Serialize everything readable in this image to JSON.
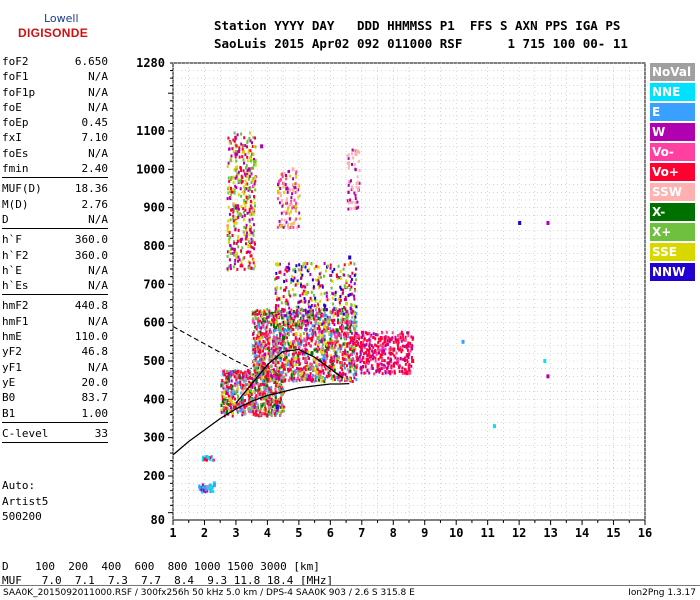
{
  "logo": {
    "line1": "Lowell",
    "line2": "DIGISONDE"
  },
  "header": {
    "line1": "Station YYYY DAY   DDD HHMMSS P1  FFS S AXN PPS IGA PS",
    "line2": "SaoLuis 2015 Apr02 092 011000 RSF      1 715 100 00- 11"
  },
  "params": [
    {
      "group": [
        {
          "label": "foF2",
          "value": "6.650"
        },
        {
          "label": "foF1",
          "value": "N/A"
        },
        {
          "label": "foF1p",
          "value": "N/A"
        },
        {
          "label": "foE",
          "value": "N/A"
        },
        {
          "label": "foEp",
          "value": "0.45"
        },
        {
          "label": "fxI",
          "value": "7.10"
        },
        {
          "label": "foEs",
          "value": "N/A"
        },
        {
          "label": "fmin",
          "value": "2.40"
        }
      ]
    },
    {
      "group": [
        {
          "label": "MUF(D)",
          "value": "18.36"
        },
        {
          "label": "M(D)",
          "value": "2.76"
        },
        {
          "label": "D",
          "value": "N/A"
        }
      ]
    },
    {
      "group": [
        {
          "label": "h`F",
          "value": "360.0"
        },
        {
          "label": "h`F2",
          "value": "360.0"
        },
        {
          "label": "h`E",
          "value": "N/A"
        },
        {
          "label": "h`Es",
          "value": "N/A"
        }
      ]
    },
    {
      "group": [
        {
          "label": "hmF2",
          "value": "440.8"
        },
        {
          "label": "hmF1",
          "value": "N/A"
        },
        {
          "label": "hmE",
          "value": "110.0"
        },
        {
          "label": "yF2",
          "value": "46.8"
        },
        {
          "label": "yF1",
          "value": "N/A"
        },
        {
          "label": "yE",
          "value": "20.0"
        },
        {
          "label": "B0",
          "value": "83.7"
        },
        {
          "label": "B1",
          "value": "1.00"
        }
      ]
    },
    {
      "group": [
        {
          "label": "C-level",
          "value": "33"
        }
      ]
    }
  ],
  "auto": {
    "line1": "Auto:",
    "line2": "Artist5",
    "line3": "500200"
  },
  "bottom": {
    "d_line": "D    100  200  400  600  800 1000 1500 3000 [km]",
    "muf_line": "MUF   7.0  7.1  7.3  7.7  8.4  9.3 11.8 18.4 [MHz]"
  },
  "footer": {
    "left": "SAA0K_2015092011000.RSF / 300fx256h 50 kHz 5.0 km / DPS-4 SAA0K 903 / 2.6 S 315.8 E",
    "right": "Ion2Png 1.3.17"
  },
  "legend": [
    {
      "label": "NoVal",
      "color": "#a0a0a0"
    },
    {
      "label": "NNE",
      "color": "#00e0ff"
    },
    {
      "label": "E",
      "color": "#3aa0ff"
    },
    {
      "label": "W",
      "color": "#b000b0"
    },
    {
      "label": "Vo-",
      "color": "#ff40a0"
    },
    {
      "label": "Vo+",
      "color": "#ff0030"
    },
    {
      "label": "SSW",
      "color": "#ffb0b0"
    },
    {
      "label": "X-",
      "color": "#007000"
    },
    {
      "label": "X+",
      "color": "#70c040"
    },
    {
      "label": "SSE",
      "color": "#d8d800"
    },
    {
      "label": "NNW",
      "color": "#2000d0"
    }
  ],
  "chart_data": {
    "type": "scatter",
    "x_ticks": [
      1,
      2,
      3,
      4,
      5,
      6,
      7,
      8,
      9,
      10,
      11,
      12,
      13,
      14,
      15,
      16
    ],
    "y_ticks": [
      80,
      200,
      300,
      400,
      500,
      600,
      700,
      800,
      900,
      1000,
      1100,
      1280
    ],
    "xlim": [
      1,
      16
    ],
    "ylim": [
      80,
      1280
    ],
    "grid": true,
    "series": [
      {
        "name": "NoVal",
        "color": "#a0a0a0",
        "points": [
          [
            2.1,
            170
          ],
          [
            3.3,
            450
          ],
          [
            4.1,
            520
          ]
        ]
      },
      {
        "name": "NNE",
        "color": "#00e0ff",
        "points": [
          [
            2.2,
            170
          ],
          [
            2.3,
            180
          ],
          [
            11.2,
            330
          ],
          [
            12.8,
            500
          ]
        ]
      },
      {
        "name": "E",
        "color": "#3aa0ff",
        "points": [
          [
            2.0,
            170
          ],
          [
            2.3,
            175
          ],
          [
            10.2,
            550
          ]
        ]
      },
      {
        "name": "W",
        "color": "#b000b0",
        "points": [
          [
            3.0,
            900
          ],
          [
            3.4,
            1000
          ],
          [
            3.8,
            1060
          ],
          [
            4.6,
            950
          ],
          [
            12.9,
            460
          ],
          [
            12.9,
            860
          ]
        ]
      },
      {
        "name": "Vo-",
        "color": "#ff40a0",
        "points": [
          [
            4.2,
            560
          ],
          [
            5.2,
            500
          ],
          [
            6.6,
            600
          ]
        ]
      },
      {
        "name": "Vo+",
        "color": "#ff0030",
        "points": [
          [
            3.0,
            470
          ],
          [
            4.0,
            470
          ],
          [
            5.0,
            520
          ],
          [
            6.0,
            500
          ],
          [
            7.0,
            540
          ],
          [
            7.6,
            560
          ],
          [
            8.0,
            530
          ],
          [
            8.6,
            500
          ]
        ]
      },
      {
        "name": "SSW",
        "color": "#ffb0b0",
        "points": [
          [
            6.8,
            1040
          ],
          [
            4.8,
            1000
          ],
          [
            3.2,
            420
          ]
        ]
      },
      {
        "name": "X-",
        "color": "#007000",
        "points": [
          [
            4.5,
            560
          ],
          [
            5.4,
            520
          ],
          [
            6.2,
            580
          ]
        ]
      },
      {
        "name": "X+",
        "color": "#70c040",
        "points": [
          [
            4.4,
            580
          ],
          [
            5.6,
            560
          ],
          [
            6.5,
            620
          ]
        ]
      },
      {
        "name": "SSE",
        "color": "#d8d800",
        "points": [
          [
            2.8,
            400
          ],
          [
            3.0,
            780
          ],
          [
            3.4,
            800
          ],
          [
            4.9,
            570
          ],
          [
            5.8,
            590
          ],
          [
            6.5,
            650
          ]
        ]
      },
      {
        "name": "NNW",
        "color": "#2000d0",
        "points": [
          [
            4.3,
            380
          ],
          [
            6.6,
            770
          ],
          [
            12.0,
            860
          ]
        ]
      }
    ],
    "profile_curve": [
      [
        1.0,
        255
      ],
      [
        1.5,
        290
      ],
      [
        2.0,
        320
      ],
      [
        2.5,
        350
      ],
      [
        3.0,
        375
      ],
      [
        3.5,
        395
      ],
      [
        4.0,
        410
      ],
      [
        4.5,
        420
      ],
      [
        5.0,
        430
      ],
      [
        5.5,
        435
      ],
      [
        6.0,
        440
      ],
      [
        6.3,
        440
      ],
      [
        6.6,
        441
      ]
    ],
    "trace_curve": [
      [
        3.0,
        390
      ],
      [
        3.5,
        440
      ],
      [
        4.0,
        490
      ],
      [
        4.5,
        525
      ],
      [
        5.0,
        530
      ],
      [
        5.5,
        510
      ],
      [
        6.0,
        480
      ],
      [
        6.4,
        455
      ]
    ],
    "dashed_curve": [
      [
        1.0,
        590
      ],
      [
        2.0,
        545
      ],
      [
        3.0,
        500
      ],
      [
        3.5,
        480
      ]
    ]
  }
}
